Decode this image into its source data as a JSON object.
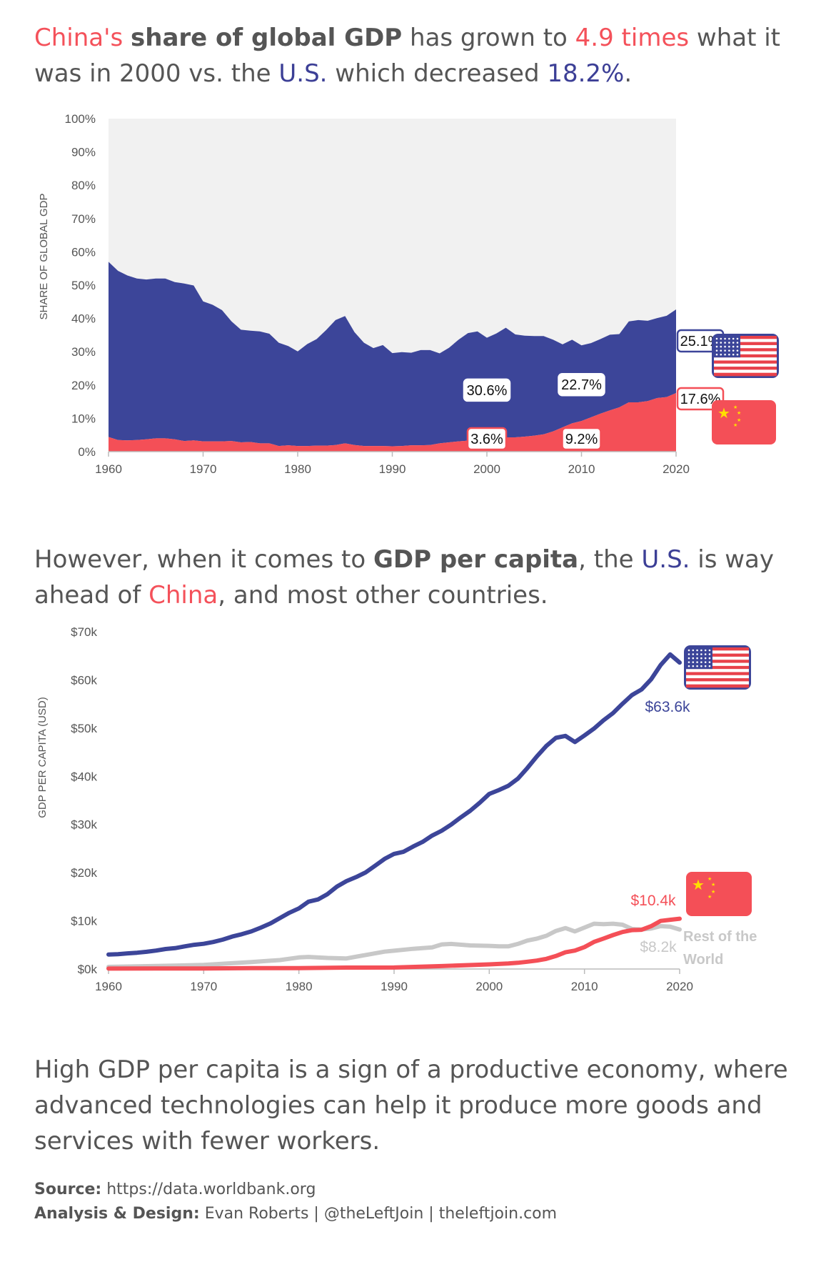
{
  "headline1": {
    "part1": "China's",
    "part2": "share of global GDP",
    "part3": "has grown to",
    "part4": "4.9 times",
    "part5": "what it was in 2000 vs. the",
    "part6": "U.S.",
    "part7": "which decreased",
    "part8": "18.2%",
    "part9": "."
  },
  "headline2": {
    "part1": "However, when it comes to",
    "part2": "GDP per capita",
    "part3": ", the",
    "part4": "U.S.",
    "part5": "is way ahead of",
    "part6": "China",
    "part7": ", and most other countries."
  },
  "paragraph": "High GDP per capita is a sign of a productive economy, where advanced technologies can help it produce more goods and services with fewer workers.",
  "footer": {
    "source_label": "Source:",
    "source_value": "https://data.worldbank.org",
    "credit_label": "Analysis & Design:",
    "credit_value": "Evan Roberts | @theLeftJoin | theleftjoin.com"
  },
  "colors": {
    "us": "#3c4599",
    "china": "#f44f57",
    "rest": "#c8c8c8",
    "plot_bg": "#f1f1f1",
    "text": "#555555"
  },
  "icons": {
    "us": "us-flag-icon",
    "china": "china-flag-icon"
  },
  "chart_data": [
    {
      "type": "area",
      "ylabel": "SHARE OF GLOBAL GDP",
      "xlim": [
        1960,
        2020
      ],
      "ylim": [
        0,
        100
      ],
      "y_ticks": [
        "0%",
        "10%",
        "20%",
        "30%",
        "40%",
        "50%",
        "60%",
        "70%",
        "80%",
        "90%",
        "100%"
      ],
      "x_ticks": [
        "1960",
        "1970",
        "1980",
        "1990",
        "2000",
        "2010",
        "2020"
      ],
      "series": [
        {
          "key": "us",
          "x": [
            1960,
            1961,
            1962,
            1963,
            1964,
            1965,
            1966,
            1967,
            1968,
            1969,
            1970,
            1971,
            1972,
            1973,
            1974,
            1975,
            1976,
            1977,
            1978,
            1979,
            1980,
            1981,
            1982,
            1983,
            1984,
            1985,
            1986,
            1987,
            1988,
            1989,
            1990,
            1991,
            1992,
            1993,
            1994,
            1995,
            1996,
            1997,
            1998,
            1999,
            2000,
            2001,
            2002,
            2003,
            2004,
            2005,
            2006,
            2007,
            2008,
            2009,
            2010,
            2011,
            2012,
            2013,
            2014,
            2015,
            2016,
            2017,
            2018,
            2019,
            2020
          ],
          "y": [
            52.6,
            50.8,
            49.5,
            48.5,
            48.0,
            48.0,
            48.0,
            47.2,
            47.3,
            46.5,
            42.0,
            41.0,
            39.4,
            35.9,
            33.8,
            33.4,
            33.6,
            32.9,
            31.0,
            29.8,
            28.4,
            30.6,
            32.0,
            34.7,
            37.5,
            38.2,
            33.9,
            31.0,
            29.4,
            30.3,
            28.0,
            28.2,
            27.8,
            28.6,
            28.5,
            27.0,
            28.4,
            30.5,
            32.3,
            32.8,
            30.6,
            31.5,
            32.9,
            30.9,
            30.3,
            29.9,
            29.5,
            27.5,
            24.9,
            25.1,
            22.7,
            22.3,
            22.4,
            22.7,
            22.0,
            24.3,
            24.7,
            24.1,
            24.0,
            24.4,
            25.1
          ]
        },
        {
          "key": "china",
          "x": [
            1960,
            1961,
            1962,
            1963,
            1964,
            1965,
            1966,
            1967,
            1968,
            1969,
            1970,
            1971,
            1972,
            1973,
            1974,
            1975,
            1976,
            1977,
            1978,
            1979,
            1980,
            1981,
            1982,
            1983,
            1984,
            1985,
            1986,
            1987,
            1988,
            1989,
            1990,
            1991,
            1992,
            1993,
            1994,
            1995,
            1996,
            1997,
            1998,
            1999,
            2000,
            2001,
            2002,
            2003,
            2004,
            2005,
            2006,
            2007,
            2008,
            2009,
            2010,
            2011,
            2012,
            2013,
            2014,
            2015,
            2016,
            2017,
            2018,
            2019,
            2020
          ],
          "y": [
            4.4,
            3.5,
            3.4,
            3.5,
            3.7,
            4.0,
            4.0,
            3.7,
            3.2,
            3.4,
            3.1,
            3.1,
            3.1,
            3.2,
            2.8,
            2.9,
            2.5,
            2.5,
            1.7,
            1.9,
            1.7,
            1.7,
            1.8,
            1.8,
            2.0,
            2.5,
            2.0,
            1.7,
            1.7,
            1.7,
            1.6,
            1.7,
            1.9,
            1.9,
            2.0,
            2.5,
            2.8,
            3.1,
            3.3,
            3.3,
            3.6,
            4.0,
            4.3,
            4.3,
            4.5,
            4.8,
            5.2,
            6.1,
            7.3,
            8.5,
            9.2,
            10.3,
            11.4,
            12.4,
            13.3,
            14.8,
            14.8,
            15.2,
            16.1,
            16.4,
            17.6
          ]
        }
      ],
      "labels": [
        {
          "text": "30.6%",
          "year": 2000,
          "series": "us"
        },
        {
          "text": "22.7%",
          "year": 2010,
          "series": "us"
        },
        {
          "text": "25.1%",
          "year": 2020,
          "series": "us"
        },
        {
          "text": "3.6%",
          "year": 2000,
          "series": "china"
        },
        {
          "text": "9.2%",
          "year": 2010,
          "series": "china"
        },
        {
          "text": "17.6%",
          "year": 2020,
          "series": "china"
        }
      ]
    },
    {
      "type": "line",
      "ylabel": "GDP PER CAPITA (USD)",
      "xlim": [
        1960,
        2020
      ],
      "ylim": [
        0,
        70000
      ],
      "y_ticks": [
        "$0k",
        "$10k",
        "$20k",
        "$30k",
        "$40k",
        "$50k",
        "$60k",
        "$70k"
      ],
      "x_ticks": [
        "1960",
        "1970",
        "1980",
        "1990",
        "2000",
        "2010",
        "2020"
      ],
      "series": [
        {
          "key": "us",
          "x": [
            1960,
            1961,
            1962,
            1963,
            1964,
            1965,
            1966,
            1967,
            1968,
            1969,
            1970,
            1971,
            1972,
            1973,
            1974,
            1975,
            1976,
            1977,
            1978,
            1979,
            1980,
            1981,
            1982,
            1983,
            1984,
            1985,
            1986,
            1987,
            1988,
            1989,
            1990,
            1991,
            1992,
            1993,
            1994,
            1995,
            1996,
            1997,
            1998,
            1999,
            2000,
            2001,
            2002,
            2003,
            2004,
            2005,
            2006,
            2007,
            2008,
            2009,
            2010,
            2011,
            2012,
            2013,
            2014,
            2015,
            2016,
            2017,
            2018,
            2019,
            2020
          ],
          "y": [
            3007,
            3067,
            3244,
            3375,
            3574,
            3828,
            4146,
            4336,
            4696,
            5032,
            5234,
            5609,
            6094,
            6726,
            7226,
            7801,
            8592,
            9453,
            10565,
            11674,
            12575,
            13976,
            14434,
            15544,
            17121,
            18237,
            19071,
            20039,
            21418,
            22857,
            23889,
            24342,
            25419,
            26387,
            27695,
            28691,
            29968,
            31459,
            32854,
            34515,
            36335,
            37133,
            38023,
            39496,
            41713,
            44115,
            46299,
            47976,
            48383,
            47100,
            48467,
            49883,
            51603,
            53107,
            55050,
            56863,
            58021,
            60110,
            63064,
            65280,
            63593
          ]
        },
        {
          "key": "china",
          "x": [
            1960,
            1965,
            1970,
            1975,
            1980,
            1985,
            1990,
            1995,
            2000,
            2001,
            2002,
            2003,
            2004,
            2005,
            2006,
            2007,
            2008,
            2009,
            2010,
            2011,
            2012,
            2013,
            2014,
            2015,
            2016,
            2017,
            2018,
            2019,
            2020
          ],
          "y": [
            90,
            98,
            113,
            178,
            195,
            294,
            318,
            610,
            959,
            1053,
            1149,
            1289,
            1509,
            1753,
            2099,
            2694,
            3468,
            3832,
            4550,
            5618,
            6317,
            7051,
            7679,
            8066,
            8148,
            8879,
            9977,
            10217,
            10435
          ]
        },
        {
          "key": "rest",
          "x": [
            1960,
            1965,
            1970,
            1975,
            1978,
            1980,
            1981,
            1983,
            1985,
            1987,
            1989,
            1990,
            1992,
            1994,
            1995,
            1996,
            1998,
            2000,
            2001,
            2002,
            2003,
            2004,
            2005,
            2006,
            2007,
            2008,
            2009,
            2010,
            2011,
            2012,
            2013,
            2014,
            2015,
            2016,
            2017,
            2018,
            2019,
            2020
          ],
          "y": [
            450,
            620,
            850,
            1450,
            1850,
            2400,
            2500,
            2300,
            2200,
            2900,
            3600,
            3800,
            4200,
            4500,
            5100,
            5200,
            4900,
            4800,
            4700,
            4700,
            5200,
            5900,
            6300,
            6900,
            7900,
            8500,
            7800,
            8600,
            9400,
            9300,
            9400,
            9200,
            8300,
            8200,
            8400,
            8900,
            8800,
            8200
          ]
        }
      ],
      "labels": [
        {
          "text": "$63.6k",
          "series": "us"
        },
        {
          "text": "$10.4k",
          "series": "china"
        },
        {
          "text": "$8.2k",
          "series": "rest"
        },
        {
          "text": "Rest of the",
          "series": "rest"
        },
        {
          "text": "World",
          "series": "rest"
        }
      ]
    }
  ]
}
